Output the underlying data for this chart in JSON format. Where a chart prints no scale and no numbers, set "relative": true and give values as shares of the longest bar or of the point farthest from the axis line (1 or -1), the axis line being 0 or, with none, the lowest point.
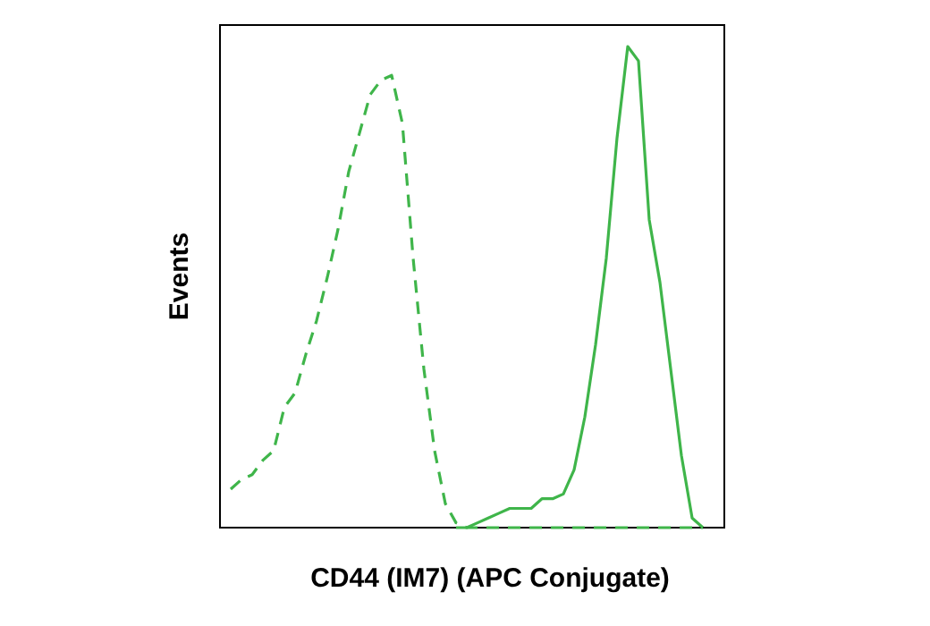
{
  "chart_data": {
    "type": "line",
    "relative": true,
    "xlabel": "CD44 (IM7) (APC Conjugate)",
    "ylabel": "Events",
    "categories": [
      null,
      null,
      null,
      null,
      null,
      null,
      null,
      null,
      null,
      null,
      null,
      null,
      null,
      null,
      null,
      null,
      null,
      null,
      null,
      null,
      null,
      null,
      null,
      null,
      null,
      null,
      null,
      null,
      null,
      null,
      null,
      null,
      null,
      null,
      null,
      null,
      null,
      null,
      null,
      null,
      null,
      null,
      null,
      null,
      null,
      null,
      null,
      null
    ],
    "series": [
      {
        "color": "#3fb54a",
        "line_style": "dashed",
        "values": [
          null,
          0.08,
          0.1,
          0.11,
          0.14,
          0.16,
          0.25,
          0.28,
          0.36,
          0.43,
          0.52,
          0.62,
          0.74,
          0.82,
          0.9,
          0.93,
          0.94,
          0.84,
          0.56,
          0.33,
          0.16,
          0.05,
          0.01,
          0,
          0,
          0,
          0,
          0,
          0,
          0,
          0,
          0,
          0,
          0,
          0,
          0,
          0,
          0,
          0,
          0,
          0,
          0,
          0,
          0,
          0,
          0,
          null,
          null
        ]
      },
      {
        "color": "#3fb54a",
        "line_style": "solid",
        "values": [
          null,
          null,
          null,
          null,
          null,
          null,
          null,
          null,
          null,
          null,
          null,
          null,
          null,
          null,
          null,
          null,
          null,
          null,
          null,
          null,
          null,
          null,
          0,
          0,
          0.01,
          0.02,
          0.03,
          0.04,
          0.04,
          0.04,
          0.06,
          0.06,
          0.07,
          0.12,
          0.23,
          0.38,
          0.56,
          0.81,
          1,
          0.97,
          0.64,
          0.51,
          0.33,
          0.15,
          0.02,
          0,
          null,
          null
        ]
      }
    ]
  }
}
